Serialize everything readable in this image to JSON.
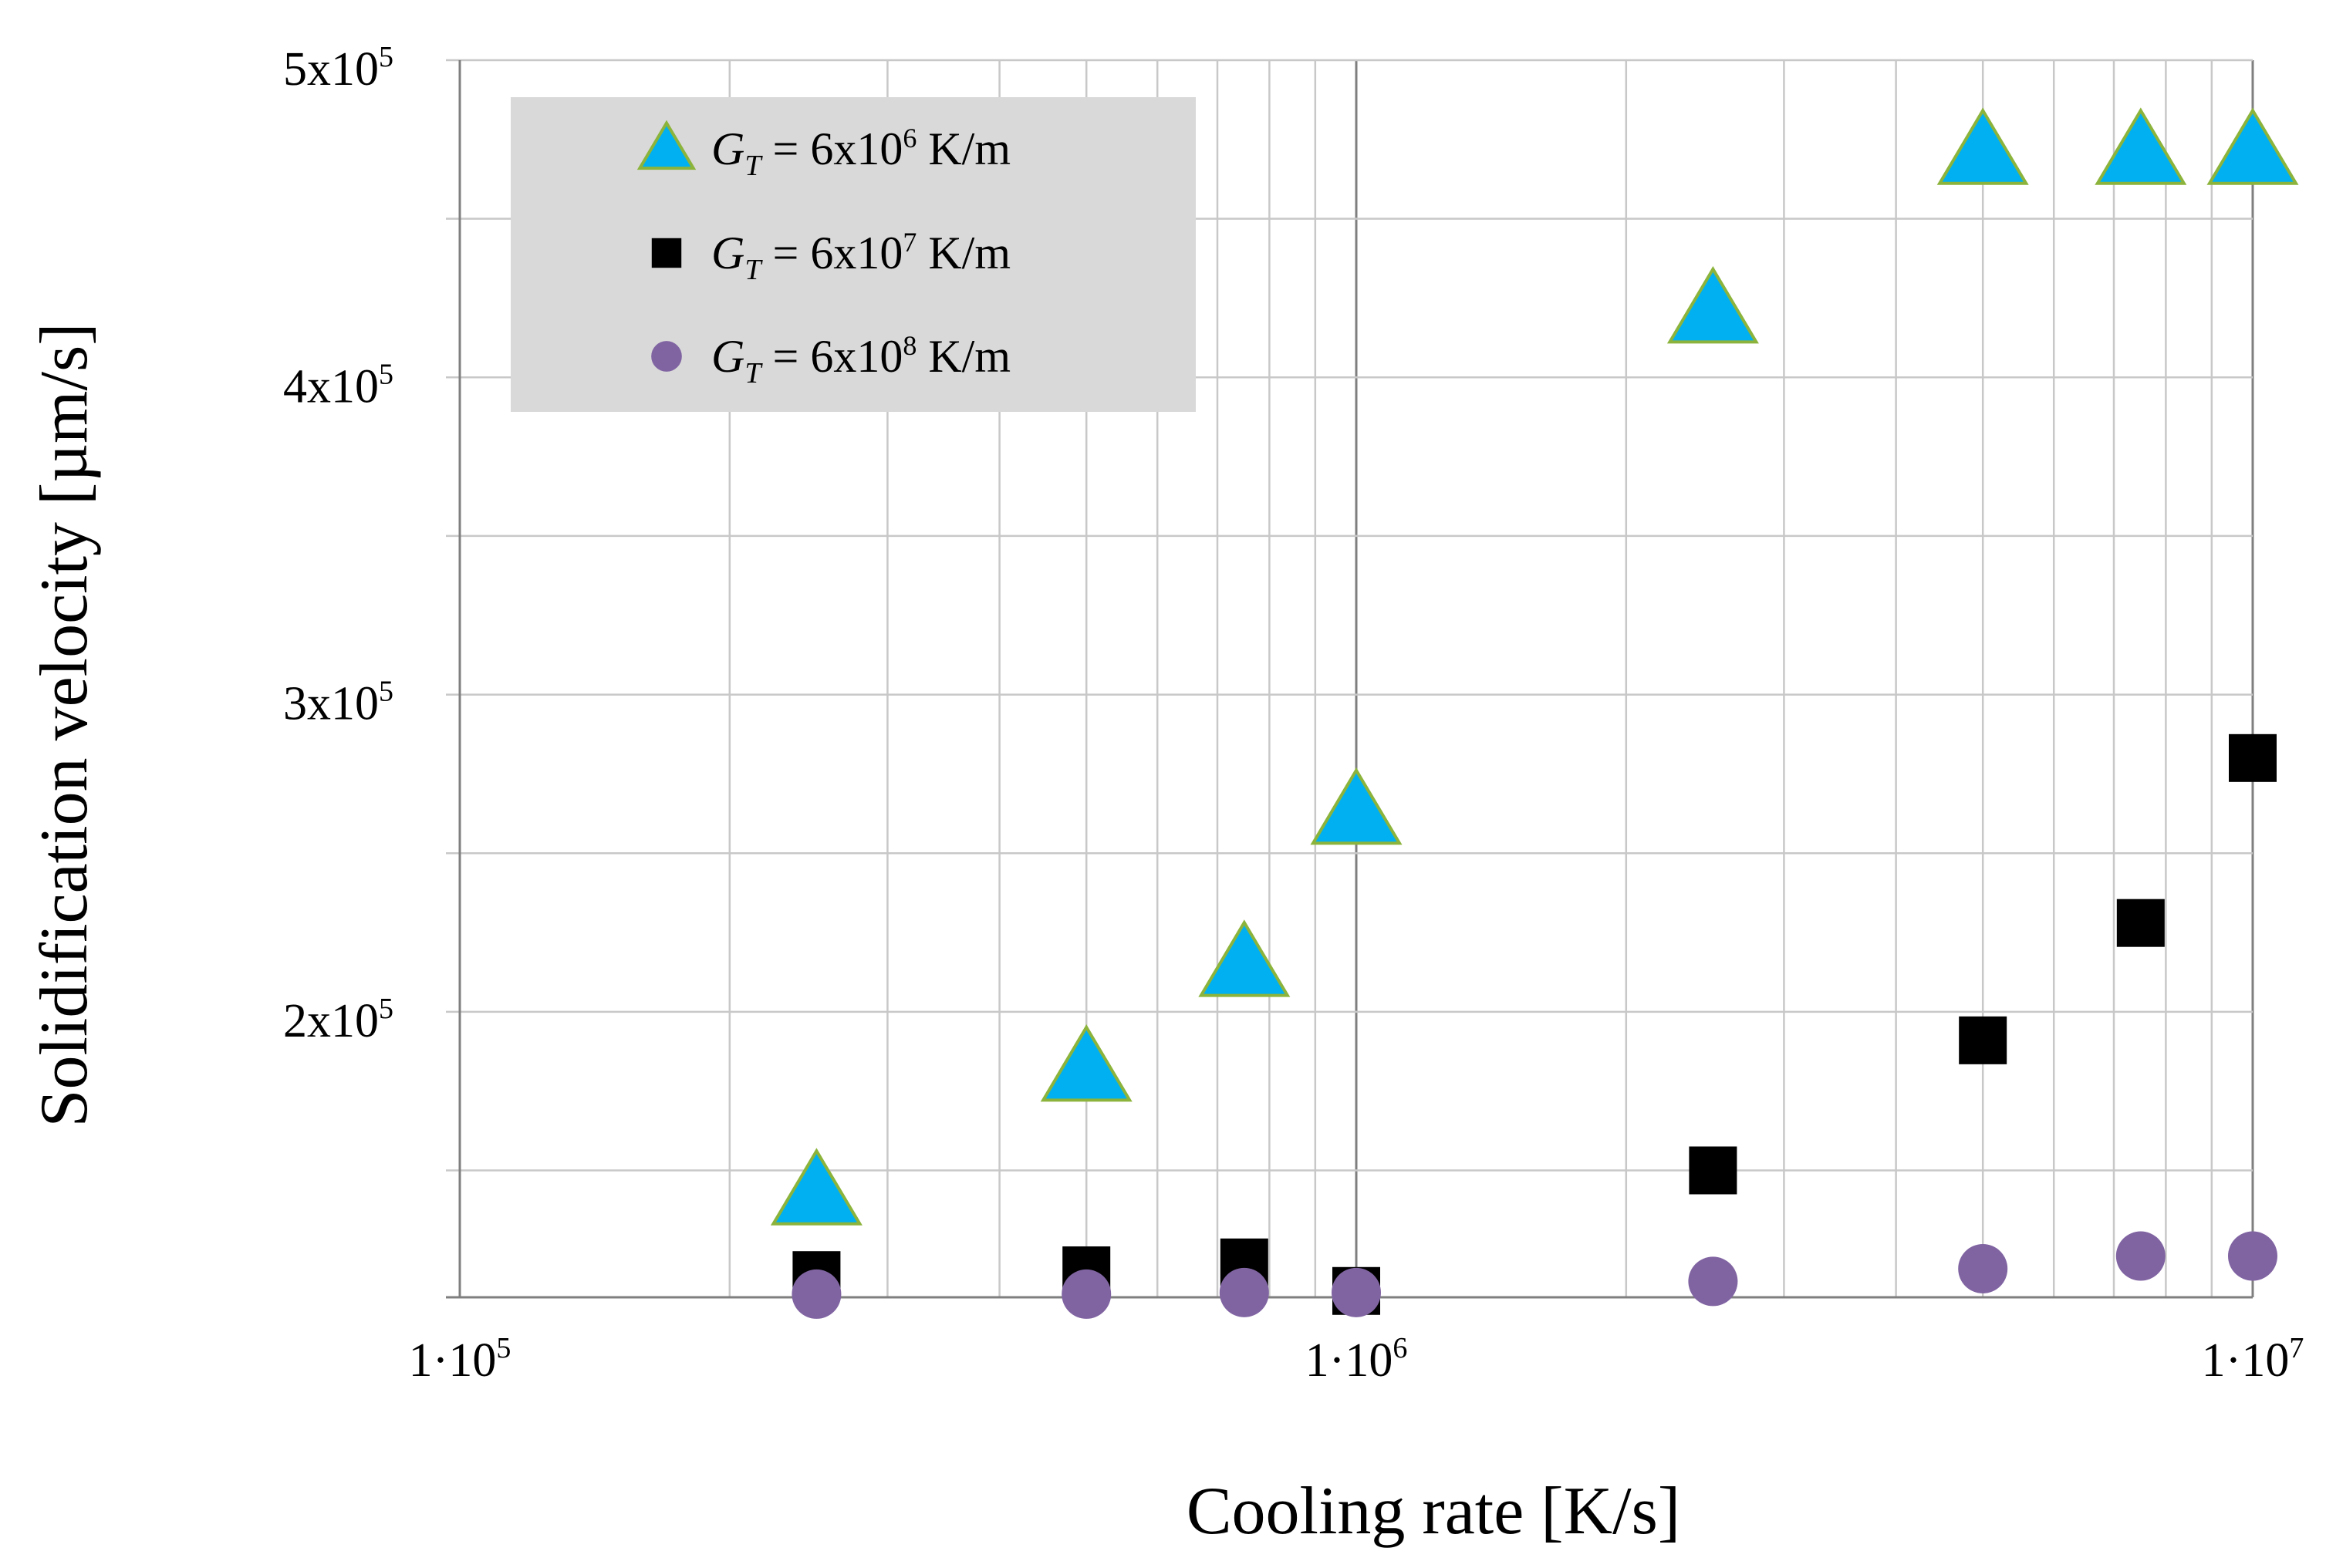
{
  "chart_data": {
    "type": "scatter",
    "x_scale": "log",
    "xlabel": "Cooling rate [K/s]",
    "ylabel": "Solidification velocity [µm/s]",
    "xlim": [
      100000,
      10000000
    ],
    "ylim": [
      110000,
      500000
    ],
    "x_ticks": [
      {
        "value": 100000,
        "base": "1·10",
        "exp": "5"
      },
      {
        "value": 1000000,
        "base": "1·10",
        "exp": "6"
      },
      {
        "value": 10000000,
        "base": "1·10",
        "exp": "7"
      }
    ],
    "y_ticks": [
      {
        "value": 200000,
        "base": "2x10",
        "exp": "5"
      },
      {
        "value": 300000,
        "base": "3x10",
        "exp": "5"
      },
      {
        "value": 400000,
        "base": "4x10",
        "exp": "5"
      },
      {
        "value": 500000,
        "base": "5x10",
        "exp": "5"
      }
    ],
    "y_gridlines": [
      150000,
      200000,
      250000,
      300000,
      350000,
      400000,
      450000,
      500000
    ],
    "grid": true,
    "legend_position": "top-left",
    "series": [
      {
        "name": "G_T = 6x10^6 K/m",
        "legend": {
          "g": "G",
          "sub": "T",
          "pre": " = 6x10",
          "exp": "6",
          "post": " K/m"
        },
        "marker": "triangle",
        "color": "#00B0F0",
        "edge_color": "#8CB43C",
        "x": [
          250000,
          500000,
          750000,
          1000000,
          2500000,
          5000000,
          7500000,
          10000000
        ],
        "y": [
          143000,
          182000,
          215000,
          263000,
          421000,
          471000,
          471000,
          471000
        ]
      },
      {
        "name": "G_T = 6x10^7 K/m",
        "legend": {
          "g": "G",
          "sub": "T",
          "pre": " = 6x10",
          "exp": "7",
          "post": " K/m"
        },
        "marker": "square",
        "color": "#000000",
        "edge_color": "#000000",
        "x": [
          250000,
          500000,
          750000,
          1000000,
          2500000,
          5000000,
          7500000,
          10000000
        ],
        "y": [
          117000,
          118500,
          121000,
          112000,
          150000,
          191000,
          228000,
          280000
        ]
      },
      {
        "name": "G_T = 6x10^8 K/m",
        "legend": {
          "g": "G",
          "sub": "T",
          "pre": " = 6x10",
          "exp": "8",
          "post": " K/m"
        },
        "marker": "circle",
        "color": "#8064A2",
        "edge_color": "#8064A2",
        "x": [
          250000,
          500000,
          750000,
          1000000,
          2500000,
          5000000,
          7500000,
          10000000
        ],
        "y": [
          111000,
          111000,
          111500,
          111500,
          115000,
          119000,
          123000,
          123000
        ]
      }
    ]
  }
}
